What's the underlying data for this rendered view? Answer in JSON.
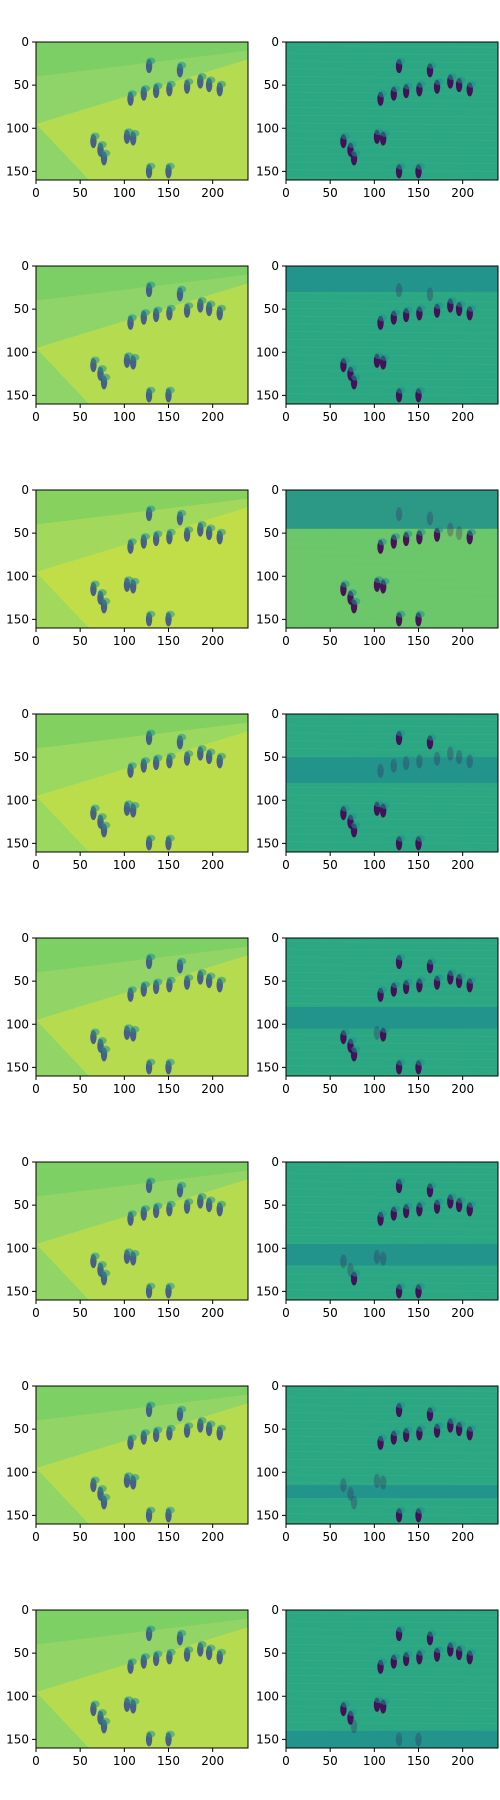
{
  "figure": {
    "rows": 8,
    "cols": 2
  },
  "colormap": [
    "#440154",
    "#3b528b",
    "#21918c",
    "#5ec962",
    "#fde725"
  ],
  "chart_data": {
    "type": "heatmap",
    "xlim": [
      0,
      240
    ],
    "ylim": [
      160,
      0
    ],
    "xticks": [
      0,
      50,
      100,
      150,
      200
    ],
    "yticks": [
      0,
      50,
      100,
      150
    ],
    "xtick_labels": [
      "0",
      "50",
      "100",
      "150",
      "200"
    ],
    "ytick_labels": [
      "0",
      "50",
      "100",
      "150"
    ],
    "grid": false,
    "legend": "none",
    "panels": [
      {
        "row": 0,
        "col": 0,
        "image": "smooth reconstruction",
        "bg": "#8fd468",
        "band": null
      },
      {
        "row": 0,
        "col": 1,
        "image": "residual",
        "bg": "#2ba784",
        "band": null
      },
      {
        "row": 1,
        "col": 0,
        "image": "smooth reconstruction",
        "bg": "#8fd468",
        "band": null
      },
      {
        "row": 1,
        "col": 1,
        "image": "residual",
        "bg": "#2ba784",
        "band": [
          0,
          30
        ]
      },
      {
        "row": 2,
        "col": 0,
        "image": "smooth reconstruction",
        "bg": "#a2d95c",
        "band": null
      },
      {
        "row": 2,
        "col": 1,
        "image": "residual",
        "bg": "#6cc66a",
        "band": [
          0,
          45
        ]
      },
      {
        "row": 3,
        "col": 0,
        "image": "smooth reconstruction",
        "bg": "#9ad860",
        "band": null
      },
      {
        "row": 3,
        "col": 1,
        "image": "residual",
        "bg": "#2ba784",
        "band": [
          50,
          80
        ]
      },
      {
        "row": 4,
        "col": 0,
        "image": "smooth reconstruction",
        "bg": "#92d566",
        "band": null
      },
      {
        "row": 4,
        "col": 1,
        "image": "residual",
        "bg": "#2ba784",
        "band": [
          80,
          105
        ]
      },
      {
        "row": 5,
        "col": 0,
        "image": "smooth reconstruction",
        "bg": "#92d566",
        "band": null
      },
      {
        "row": 5,
        "col": 1,
        "image": "residual",
        "bg": "#2ba784",
        "band": [
          95,
          120
        ]
      },
      {
        "row": 6,
        "col": 0,
        "image": "smooth reconstruction",
        "bg": "#92d566",
        "band": null
      },
      {
        "row": 6,
        "col": 1,
        "image": "residual",
        "bg": "#2ba784",
        "band": [
          115,
          130
        ]
      },
      {
        "row": 7,
        "col": 0,
        "image": "smooth reconstruction",
        "bg": "#92d566",
        "band": null
      },
      {
        "row": 7,
        "col": 1,
        "image": "residual",
        "bg": "#2ba784",
        "band": [
          140,
          160
        ]
      }
    ],
    "blobs": [
      [
        107,
        66
      ],
      [
        122,
        60
      ],
      [
        136,
        57
      ],
      [
        151,
        55
      ],
      [
        163,
        33
      ],
      [
        171,
        52
      ],
      [
        186,
        46
      ],
      [
        196,
        50
      ],
      [
        208,
        55
      ],
      [
        128,
        28
      ],
      [
        65,
        115
      ],
      [
        73,
        125
      ],
      [
        77,
        135
      ],
      [
        103,
        110
      ],
      [
        110,
        112
      ],
      [
        128,
        150
      ],
      [
        150,
        150
      ]
    ]
  }
}
